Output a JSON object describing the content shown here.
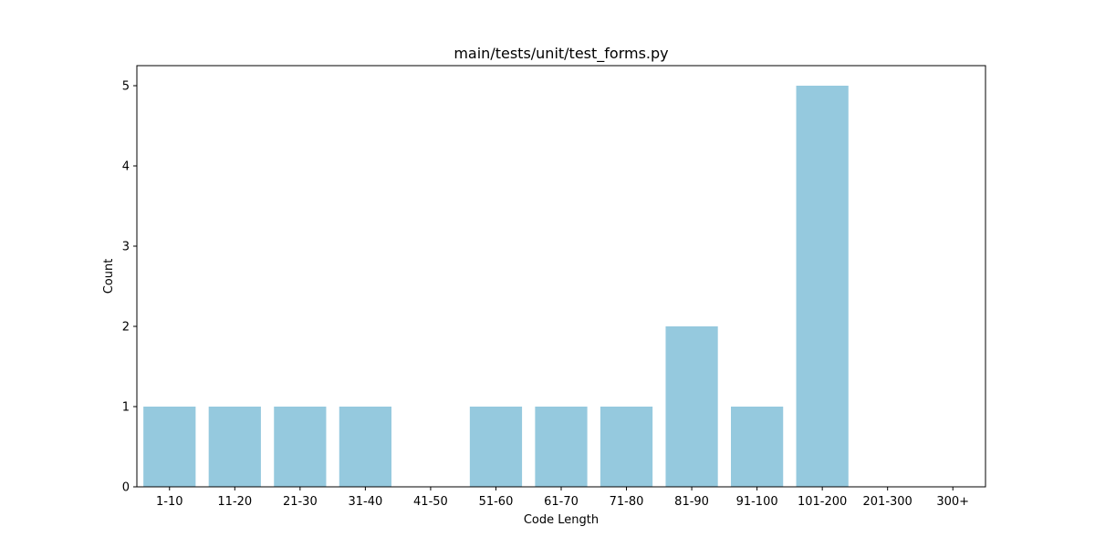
{
  "chart_data": {
    "type": "bar",
    "title": "main/tests/unit/test_forms.py",
    "xlabel": "Code Length",
    "ylabel": "Count",
    "categories": [
      "1-10",
      "11-20",
      "21-30",
      "31-40",
      "41-50",
      "51-60",
      "61-70",
      "71-80",
      "81-90",
      "91-100",
      "101-200",
      "201-300",
      "300+"
    ],
    "values": [
      1,
      1,
      1,
      1,
      0,
      1,
      1,
      1,
      2,
      1,
      5,
      0,
      0
    ],
    "ylim": [
      0,
      5.25
    ],
    "yticks": [
      0,
      1,
      2,
      3,
      4,
      5
    ],
    "bar_color": "#95c9de",
    "grid": false
  }
}
